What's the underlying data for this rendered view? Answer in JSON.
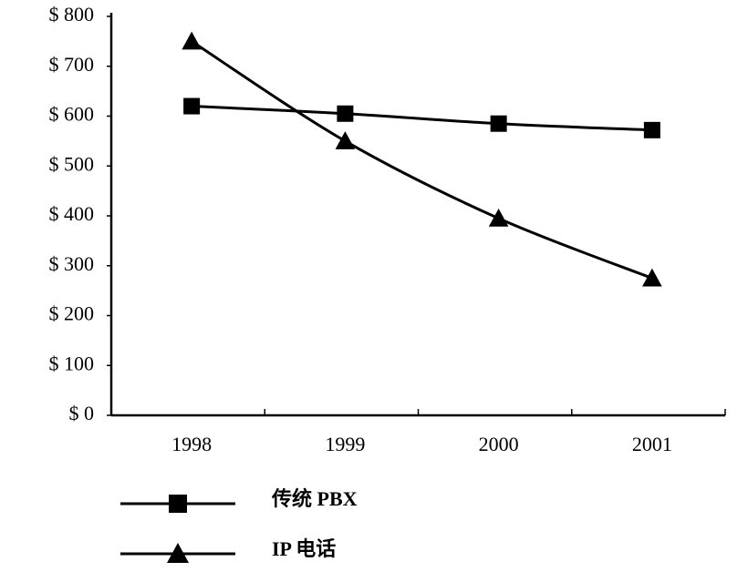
{
  "chart_data": {
    "type": "line",
    "categories": [
      "1998",
      "1999",
      "2000",
      "2001"
    ],
    "series": [
      {
        "name": "传统 PBX",
        "color": "#000000",
        "marker": "square",
        "values": [
          620,
          605,
          585,
          572
        ]
      },
      {
        "name": "IP 电话",
        "color": "#000000",
        "marker": "triangle",
        "values": [
          750,
          550,
          395,
          275
        ]
      }
    ],
    "ylim": [
      0,
      800
    ],
    "yticks": [
      {
        "value": 0,
        "label": "$ 0"
      },
      {
        "value": 100,
        "label": "$ 100"
      },
      {
        "value": 200,
        "label": "$ 200"
      },
      {
        "value": 300,
        "label": "$ 300"
      },
      {
        "value": 400,
        "label": "$ 400"
      },
      {
        "value": 500,
        "label": "$ 500"
      },
      {
        "value": 600,
        "label": "$ 600"
      },
      {
        "value": 700,
        "label": "$ 700"
      },
      {
        "value": 800,
        "label": "$ 800"
      }
    ],
    "grid": false,
    "legend": "bottom"
  }
}
